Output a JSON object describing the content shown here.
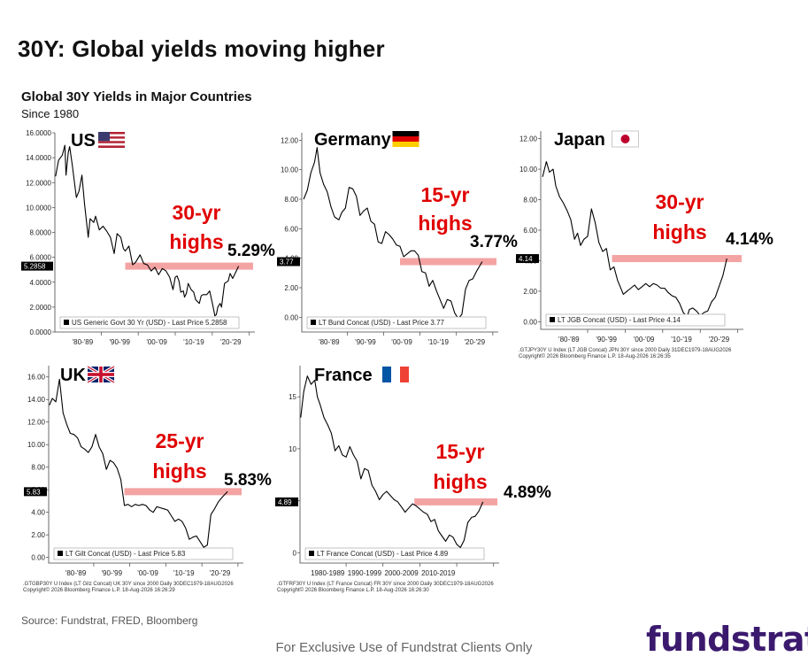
{
  "slide_title": "30Y: Global yields moving higher",
  "chart_heading": "Global 30Y Yields in Major Countries",
  "chart_subheading": "Since 1980",
  "source": "Source: Fundstrat, FRED, Bloomberg",
  "footer": "For Exclusive Use of Fundstrat Clients Only",
  "logo": "fundstrat",
  "colors": {
    "line": "#000000",
    "highlight": "#f4a3a3",
    "annotation": "#e00000",
    "logo": "#3b1a6e"
  },
  "chart_data": [
    {
      "type": "line",
      "country": "US",
      "flag": "us-flag-icon",
      "annotation": [
        "30-yr",
        "highs"
      ],
      "last_pct": "5.29%",
      "last_badge": "5.2858",
      "legend": "US Generic Govt 30 Yr (USD) - Last Price 5.2858",
      "footnote": [
        "",
        ""
      ],
      "ylim": [
        0,
        16
      ],
      "yticks": [
        0,
        2,
        4,
        6,
        8,
        10,
        12,
        14,
        16
      ],
      "ytick_labels": [
        "0.0000",
        "2.0000",
        "4.0000",
        "6.0000",
        "8.0000",
        "10.0000",
        "12.0000",
        "14.0000",
        "16.0000"
      ],
      "xlim": [
        1977,
        2031
      ],
      "xtick_positions": [
        1984.5,
        1994.5,
        2004.5,
        2014.5,
        2024.5
      ],
      "xtick_labels": [
        "'80-'89",
        "'90-'99",
        "'00-'09",
        "'10-'19",
        "'20-'29"
      ],
      "highlight_level": 5.29,
      "highlight_from": 1996,
      "last_value": 5.29,
      "x": [
        1977.2,
        1978,
        1979,
        1979.7,
        1980,
        1980.6,
        1981,
        1981.7,
        1982.2,
        1982.8,
        1983.5,
        1984.3,
        1985,
        1986,
        1986.5,
        1987.5,
        1988,
        1989,
        1990,
        1991,
        1992,
        1993,
        1993.8,
        1994.8,
        1995.5,
        1996,
        1997,
        1998,
        1998.8,
        2000,
        2001,
        2002,
        2003,
        2004,
        2005,
        2006,
        2007,
        2008,
        2008.9,
        2009.5,
        2010,
        2010.5,
        2011,
        2011.7,
        2012,
        2012.5,
        2013,
        2013.8,
        2014.5,
        2015,
        2016,
        2016.5,
        2017,
        2018,
        2018.8,
        2019.6,
        2020.2,
        2020.6,
        2021,
        2021.6,
        2022,
        2022.8,
        2023.8,
        2024.3,
        2025,
        2025.5,
        2026.6
      ],
      "y": [
        12.5,
        13.8,
        14.2,
        15.0,
        12.6,
        14.4,
        14.9,
        13.4,
        12.2,
        10.8,
        11.3,
        12.6,
        10.3,
        7.6,
        9.1,
        8.8,
        9.3,
        8.2,
        8.5,
        8.1,
        7.6,
        6.3,
        7.9,
        7.6,
        6.7,
        6.5,
        6.9,
        5.4,
        5.6,
        6.2,
        5.5,
        5.4,
        4.9,
        5.2,
        4.6,
        5.1,
        4.9,
        4.4,
        3.4,
        4.4,
        4.5,
        4.1,
        3.2,
        3.3,
        2.8,
        3.1,
        3.9,
        3.4,
        3.2,
        2.6,
        2.3,
        2.9,
        3.0,
        3.0,
        3.3,
        2.2,
        1.3,
        1.4,
        2.0,
        2.3,
        2.0,
        3.9,
        4.1,
        4.7,
        4.3,
        4.6,
        5.29
      ]
    },
    {
      "type": "line",
      "country": "Germany",
      "flag": "germany-flag-icon",
      "annotation": [
        "15-yr",
        "highs"
      ],
      "last_pct": "3.77%",
      "last_badge": "3.77",
      "legend": "LT Bund Concat (USD) - Last Price 3.77",
      "footnote": [
        "",
        ""
      ],
      "ylim": [
        -1,
        12.5
      ],
      "yticks": [
        0,
        2,
        4,
        6,
        8,
        10,
        12
      ],
      "ytick_labels": [
        "0.00",
        "2.00",
        "4.00",
        "6.00",
        "8.00",
        "10.00",
        "12.00"
      ],
      "xlim": [
        1977,
        2031
      ],
      "xtick_positions": [
        1984.5,
        1994.5,
        2004.5,
        2014.5,
        2024.5
      ],
      "xtick_labels": [
        "'80-'89",
        "'90-'99",
        "'00-'09",
        "'10-'19",
        "'20-'29"
      ],
      "highlight_level": 3.77,
      "highlight_from": 2004,
      "last_value": 3.77,
      "x": [
        1977.5,
        1978.5,
        1979.5,
        1980.5,
        1981.2,
        1982,
        1983,
        1984,
        1985,
        1986,
        1987.2,
        1988,
        1989,
        1990,
        1991,
        1992,
        1993,
        1994,
        1995,
        1996,
        1997,
        1998,
        1999,
        2000,
        2001,
        2002,
        2003,
        2004,
        2005,
        2006,
        2007,
        2008,
        2009,
        2010,
        2011,
        2012,
        2013,
        2014,
        2015,
        2016,
        2017,
        2018,
        2019,
        2020,
        2021,
        2022,
        2023,
        2024,
        2025,
        2026.6
      ],
      "y": [
        8.0,
        8.6,
        9.8,
        10.5,
        11.5,
        9.8,
        9.0,
        8.5,
        7.5,
        6.8,
        6.6,
        7.1,
        7.4,
        8.8,
        8.7,
        8.2,
        6.9,
        7.2,
        7.4,
        6.5,
        6.3,
        5.1,
        5.0,
        5.8,
        5.6,
        5.3,
        4.9,
        4.8,
        4.1,
        4.3,
        4.5,
        4.5,
        4.2,
        3.1,
        3.0,
        2.1,
        2.5,
        1.8,
        1.2,
        0.6,
        1.2,
        1.1,
        0.3,
        -0.1,
        0.2,
        1.9,
        2.5,
        2.6,
        3.1,
        3.77
      ]
    },
    {
      "type": "line",
      "country": "Japan",
      "flag": "japan-flag-icon",
      "annotation": [
        "30-yr",
        "highs"
      ],
      "last_pct": "4.14%",
      "last_badge": "4.14",
      "legend": "LT JGB Concat (USD) - Last Price 4.14",
      "footnote": [
        ".GTJPY30Y U Index (LT JGB Concat) JPN 30Y since 2000 Daily 31DEC1979-18AUG2026",
        "Copyright© 2026 Bloomberg Finance L.P.                                          18-Aug-2026 16:26:35"
      ],
      "ylim": [
        -0.5,
        12.5
      ],
      "yticks": [
        0,
        2,
        4,
        6,
        8,
        10,
        12
      ],
      "ytick_labels": [
        "0.00",
        "2.00",
        "4.00",
        "6.00",
        "8.00",
        "10.00",
        "12.00"
      ],
      "xlim": [
        1977,
        2031
      ],
      "xtick_positions": [
        1984.5,
        1994.5,
        2004.5,
        2014.5,
        2024.5
      ],
      "xtick_labels": [
        "'80-'89",
        "'90-'99",
        "'00-'09",
        "'10-'19",
        "'20-'29"
      ],
      "highlight_level": 4.14,
      "highlight_from": 1996,
      "last_value": 4.14,
      "x": [
        1977.5,
        1978.5,
        1979.3,
        1980.3,
        1981,
        1982,
        1983,
        1984,
        1985,
        1986,
        1986.8,
        1987.6,
        1988.5,
        1989.5,
        1990.5,
        1991.5,
        1992.5,
        1993.5,
        1994.5,
        1995.5,
        1996.5,
        1997.5,
        1998.5,
        1999,
        2000,
        2001,
        2002,
        2003,
        2004,
        2005,
        2006,
        2007,
        2008,
        2009,
        2010,
        2011,
        2012,
        2013,
        2014,
        2015,
        2016,
        2016.6,
        2017.5,
        2018.5,
        2019.5,
        2020.5,
        2021.5,
        2022.5,
        2023.5,
        2024.5,
        2025.5,
        2026.6
      ],
      "y": [
        9.5,
        10.5,
        9.8,
        10.0,
        8.9,
        8.2,
        7.8,
        7.3,
        6.7,
        5.4,
        5.8,
        5.0,
        5.4,
        5.6,
        7.4,
        6.5,
        5.2,
        4.6,
        4.8,
        3.4,
        3.6,
        2.7,
        2.1,
        1.8,
        2.0,
        2.2,
        2.4,
        2.1,
        2.3,
        2.5,
        2.3,
        2.5,
        2.4,
        2.2,
        2.2,
        1.9,
        1.7,
        1.6,
        1.2,
        0.6,
        0.3,
        0.8,
        0.9,
        0.7,
        0.4,
        0.6,
        0.7,
        1.3,
        1.6,
        2.3,
        3.0,
        4.14
      ]
    },
    {
      "type": "line",
      "country": "UK",
      "flag": "uk-flag-icon",
      "annotation": [
        "25-yr",
        "highs"
      ],
      "last_pct": "5.83%",
      "last_badge": "5.83",
      "legend": "LT Gilt Concat (USD) - Last Price 5.83",
      "footnote": [
        ".GTGBP30Y U Index (LT Gilz Concat) UK 30Y since 2000 Daily 30DEC1979-18AUG2026",
        "Copyright© 2026 Bloomberg Finance L.P.                                          18-Aug-2026 16:26:29"
      ],
      "ylim": [
        -0.5,
        17
      ],
      "yticks": [
        0,
        2,
        4,
        6,
        8,
        10,
        12,
        14,
        16
      ],
      "ytick_labels": [
        "0.00",
        "2.00",
        "4.00",
        "6.00",
        "8.00",
        "10.00",
        "12.00",
        "14.00",
        "16.00"
      ],
      "xlim": [
        1977,
        2031
      ],
      "xtick_positions": [
        1984.5,
        1994.5,
        2004.5,
        2014.5,
        2024.5
      ],
      "xtick_labels": [
        "'80-'89",
        "'90-'99",
        "'00-'09",
        "'10-'19",
        "'20-'29"
      ],
      "highlight_level": 5.83,
      "highlight_from": 1998,
      "last_value": 5.83,
      "x": [
        1977.2,
        1978,
        1979,
        1980,
        1981,
        1982,
        1983,
        1984,
        1985,
        1986,
        1987,
        1988,
        1989,
        1990,
        1991,
        1992,
        1993,
        1994,
        1995,
        1996,
        1997,
        1998,
        1999,
        2000,
        2001,
        2002,
        2003,
        2004,
        2005,
        2006,
        2007,
        2008,
        2009,
        2010,
        2011,
        2012,
        2013,
        2014,
        2015,
        2016,
        2017,
        2018,
        2019,
        2020,
        2021,
        2022,
        2023,
        2024,
        2025,
        2026.6
      ],
      "y": [
        13.5,
        14.1,
        13.8,
        15.8,
        12.8,
        11.8,
        11.0,
        10.9,
        10.6,
        9.8,
        9.6,
        9.3,
        9.8,
        10.9,
        9.8,
        9.2,
        7.8,
        8.6,
        8.4,
        7.9,
        6.9,
        4.6,
        4.7,
        4.5,
        4.7,
        4.6,
        4.7,
        4.6,
        4.2,
        4.0,
        4.5,
        4.4,
        4.3,
        4.2,
        3.7,
        3.2,
        3.4,
        3.2,
        2.6,
        1.6,
        1.8,
        1.9,
        1.4,
        0.9,
        1.1,
        3.8,
        4.3,
        4.9,
        5.3,
        5.83
      ]
    },
    {
      "type": "line",
      "country": "France",
      "flag": "france-flag-icon",
      "annotation": [
        "15-yr",
        "highs"
      ],
      "last_pct": "4.89%",
      "last_badge": "4.89",
      "legend": "LT France Concat (USD) - Last Price 4.89",
      "footnote": [
        ".GTFRF30Y U Index (LT France Concat) FR 30Y since 2000 Daily 30DEC1979-18AUG2026",
        "Copyright© 2026 Bloomberg Finance L.P.                                          18-Aug-2026 16:26:30"
      ],
      "ylim": [
        -1,
        18
      ],
      "yticks": [
        0,
        5,
        10,
        15
      ],
      "ytick_labels": [
        "0",
        "5",
        "10",
        "15"
      ],
      "xlim": [
        1977,
        2031
      ],
      "xtick_positions": [
        1984.5,
        1994.5,
        2004.5,
        2014.5,
        2024.5
      ],
      "xtick_labels": [
        "1980-1989",
        "1990-1999",
        "2000-2009",
        "2010-2019",
        ""
      ],
      "highlight_level": 4.89,
      "highlight_from": 2008,
      "last_value": 4.89,
      "x": [
        1977.2,
        1978,
        1979,
        1980,
        1981,
        1981.7,
        1982.5,
        1983.5,
        1984.5,
        1985.5,
        1986.5,
        1987.5,
        1988.5,
        1989.5,
        1990.5,
        1991.5,
        1992.5,
        1993.5,
        1994.5,
        1995.5,
        1996.5,
        1997.5,
        1998.5,
        1999.5,
        2000.5,
        2001.5,
        2002.5,
        2003.5,
        2004.5,
        2005.5,
        2006.5,
        2007.5,
        2008.5,
        2009.5,
        2010.5,
        2011.5,
        2012.5,
        2013.5,
        2014.5,
        2015.5,
        2016.5,
        2017.5,
        2018.5,
        2019.5,
        2020.5,
        2021.5,
        2022.5,
        2023.5,
        2024.5,
        2025.5,
        2026.6
      ],
      "y": [
        13.0,
        15.5,
        17.0,
        16.2,
        16.6,
        15.0,
        14.2,
        13.0,
        12.3,
        11.5,
        9.8,
        10.3,
        9.4,
        9.2,
        10.2,
        9.4,
        8.8,
        7.1,
        8.1,
        7.9,
        6.5,
        5.9,
        5.1,
        5.6,
        5.9,
        5.5,
        5.1,
        4.9,
        4.4,
        3.9,
        4.3,
        4.7,
        4.5,
        4.2,
        3.9,
        3.7,
        3.0,
        3.2,
        2.1,
        1.6,
        1.1,
        1.7,
        1.5,
        0.8,
        0.5,
        1.2,
        2.9,
        3.4,
        3.5,
        4.0,
        4.89
      ]
    }
  ]
}
